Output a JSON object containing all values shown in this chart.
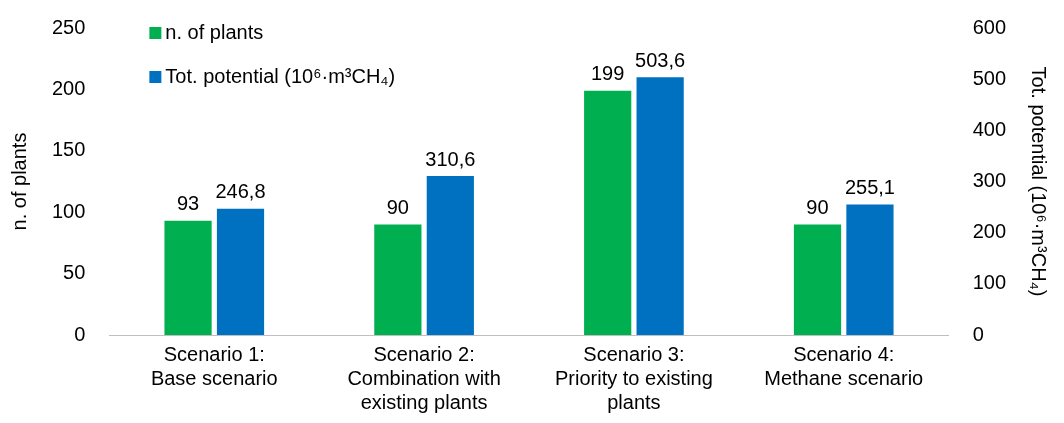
{
  "chart_data": {
    "type": "bar",
    "ylabel": "n. of plants",
    "y2label": "Tot. potential (10⁶·m³CH₄)",
    "categories": [
      "Scenario 1:\nBase scenario",
      "Scenario 2:\nCombination with\nexisting plants",
      "Scenario 3:\nPriority to existing\nplants",
      "Scenario 4:\nMethane scenario"
    ],
    "series": [
      {
        "name": "n. of plants",
        "color": "#00b050",
        "values": [
          93,
          90,
          199,
          90
        ],
        "value_labels": [
          "93",
          "90",
          "199",
          "90"
        ]
      },
      {
        "name": "Tot. potential (10⁶·m³CH₄)",
        "color": "#0070c0",
        "axis": "y2",
        "values": [
          246.8,
          310.6,
          503.6,
          255.1
        ],
        "value_labels": [
          "246,8",
          "310,6",
          "503,6",
          "255,1"
        ]
      }
    ],
    "ylim": [
      0,
      250
    ],
    "yticks": [
      0,
      50,
      100,
      150,
      200,
      250
    ],
    "y2lim": [
      0,
      600
    ],
    "y2ticks": [
      0,
      100,
      200,
      300,
      400,
      500,
      600
    ],
    "grid": false,
    "legend": "top left"
  }
}
